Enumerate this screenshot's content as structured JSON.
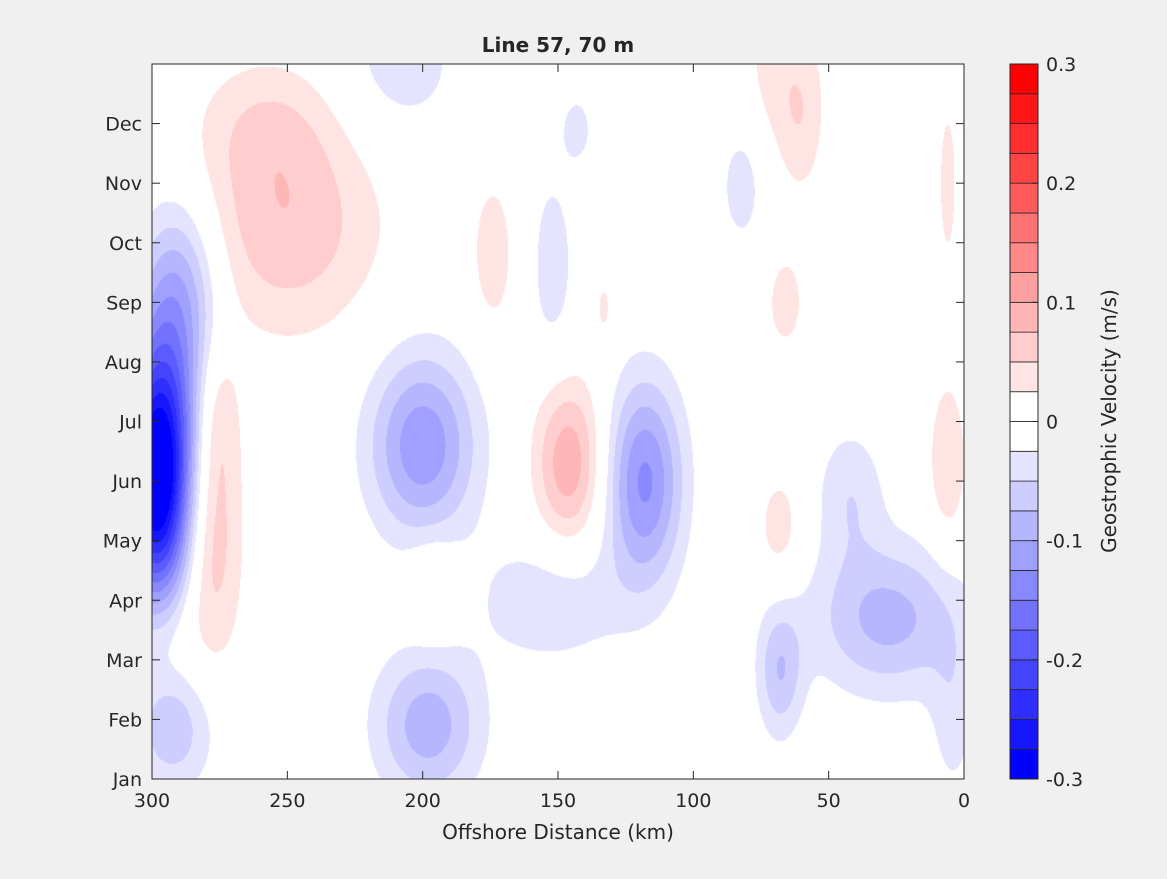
{
  "chart_data": {
    "type": "heatmap",
    "subtype": "filled-contour",
    "title": "Line 57, 70 m",
    "xlabel": "Offshore Distance (km)",
    "ylabel": "",
    "xlim": [
      300,
      0
    ],
    "x_reversed": true,
    "xticks": [
      300,
      250,
      200,
      150,
      100,
      50,
      0
    ],
    "ylim": [
      0,
      12
    ],
    "yticks": [
      {
        "value": 0,
        "label": "Jan"
      },
      {
        "value": 1,
        "label": "Feb"
      },
      {
        "value": 2,
        "label": "Mar"
      },
      {
        "value": 3,
        "label": "Apr"
      },
      {
        "value": 4,
        "label": "May"
      },
      {
        "value": 5,
        "label": "Jun"
      },
      {
        "value": 6,
        "label": "Jul"
      },
      {
        "value": 7,
        "label": "Aug"
      },
      {
        "value": 8,
        "label": "Sep"
      },
      {
        "value": 9,
        "label": "Oct"
      },
      {
        "value": 10,
        "label": "Nov"
      },
      {
        "value": 11,
        "label": "Dec"
      }
    ],
    "grid": false,
    "colorbar": {
      "label": "Geostrophic Velocity (m/s)",
      "clim": [
        -0.3,
        0.3
      ],
      "levels": [
        -0.3,
        -0.275,
        -0.25,
        -0.225,
        -0.2,
        -0.175,
        -0.15,
        -0.125,
        -0.1,
        -0.075,
        -0.05,
        -0.025,
        0,
        0.025,
        0.05,
        0.075,
        0.1,
        0.125,
        0.15,
        0.175,
        0.2,
        0.225,
        0.25,
        0.275,
        0.3
      ],
      "ticks": [
        {
          "value": -0.3,
          "label": "-0.3"
        },
        {
          "value": -0.2,
          "label": "-0.2"
        },
        {
          "value": -0.1,
          "label": "-0.1"
        },
        {
          "value": 0,
          "label": "0"
        },
        {
          "value": 0.1,
          "label": "0.1"
        },
        {
          "value": 0.2,
          "label": "0.2"
        },
        {
          "value": 0.3,
          "label": "0.3"
        }
      ],
      "colormap": "blue-white-red",
      "negative_color": "#0000ff",
      "positive_color": "#ff0000",
      "neutral_color": "#ffffff"
    },
    "features": [
      {
        "x": 298,
        "y": 5.0,
        "sx": 9,
        "sy": 1.5,
        "amp": -0.32
      },
      {
        "x": 290,
        "y": 7.2,
        "sx": 11,
        "sy": 1.5,
        "amp": -0.07
      },
      {
        "x": 290,
        "y": 8.4,
        "sx": 10,
        "sy": 1.0,
        "amp": -0.05
      },
      {
        "x": 292,
        "y": 0.9,
        "sx": 11,
        "sy": 0.8,
        "amp": -0.07
      },
      {
        "x": 278,
        "y": 4.1,
        "sx": 8,
        "sy": 1.6,
        "amp": 0.07
      },
      {
        "x": 276,
        "y": 6.2,
        "sx": 6,
        "sy": 0.9,
        "amp": 0.04
      },
      {
        "x": 296,
        "y": 2.3,
        "sx": 9,
        "sy": 0.8,
        "amp": 0.04
      },
      {
        "x": 250,
        "y": 9.3,
        "sx": 24,
        "sy": 1.3,
        "amp": 0.07
      },
      {
        "x": 258,
        "y": 11.0,
        "sx": 18,
        "sy": 0.8,
        "amp": 0.035
      },
      {
        "x": 200,
        "y": 5.6,
        "sx": 14,
        "sy": 1.1,
        "amp": -0.12
      },
      {
        "x": 198,
        "y": 0.9,
        "sx": 14,
        "sy": 0.9,
        "amp": -0.09
      },
      {
        "x": 208,
        "y": 12.0,
        "sx": 16,
        "sy": 0.9,
        "amp": -0.04
      },
      {
        "x": 174,
        "y": 8.8,
        "sx": 6,
        "sy": 1.0,
        "amp": 0.04
      },
      {
        "x": 196,
        "y": 3.2,
        "sx": 7,
        "sy": 0.6,
        "amp": 0.035
      },
      {
        "x": 146,
        "y": 5.3,
        "sx": 9,
        "sy": 1.0,
        "amp": 0.095
      },
      {
        "x": 118,
        "y": 5.0,
        "sx": 10,
        "sy": 1.2,
        "amp": -0.13
      },
      {
        "x": 152,
        "y": 3.0,
        "sx": 20,
        "sy": 0.8,
        "amp": -0.045
      },
      {
        "x": 152,
        "y": 8.6,
        "sx": 6,
        "sy": 1.2,
        "amp": -0.04
      },
      {
        "x": 143,
        "y": 10.9,
        "sx": 4,
        "sy": 0.4,
        "amp": -0.04
      },
      {
        "x": 133,
        "y": 7.9,
        "sx": 3,
        "sy": 0.5,
        "amp": 0.03
      },
      {
        "x": 82,
        "y": 10.0,
        "sx": 6,
        "sy": 0.8,
        "amp": -0.04
      },
      {
        "x": 66,
        "y": 8.0,
        "sx": 6,
        "sy": 0.7,
        "amp": 0.035
      },
      {
        "x": 68,
        "y": 11.8,
        "sx": 11,
        "sy": 1.0,
        "amp": 0.035
      },
      {
        "x": 60,
        "y": 10.9,
        "sx": 6,
        "sy": 0.9,
        "amp": 0.03
      },
      {
        "x": 68,
        "y": 4.2,
        "sx": 6,
        "sy": 0.7,
        "amp": 0.04
      },
      {
        "x": 68,
        "y": 1.8,
        "sx": 6,
        "sy": 0.8,
        "amp": -0.07
      },
      {
        "x": 28,
        "y": 2.7,
        "sx": 20,
        "sy": 0.9,
        "amp": -0.085
      },
      {
        "x": 42,
        "y": 4.8,
        "sx": 9,
        "sy": 0.8,
        "amp": -0.045
      },
      {
        "x": 6,
        "y": 5.3,
        "sx": 5,
        "sy": 1.0,
        "amp": 0.05
      },
      {
        "x": 6,
        "y": 10.0,
        "sx": 3,
        "sy": 1.2,
        "amp": 0.035
      },
      {
        "x": 4,
        "y": 1.0,
        "sx": 6,
        "sy": 1.0,
        "amp": -0.035
      }
    ]
  }
}
